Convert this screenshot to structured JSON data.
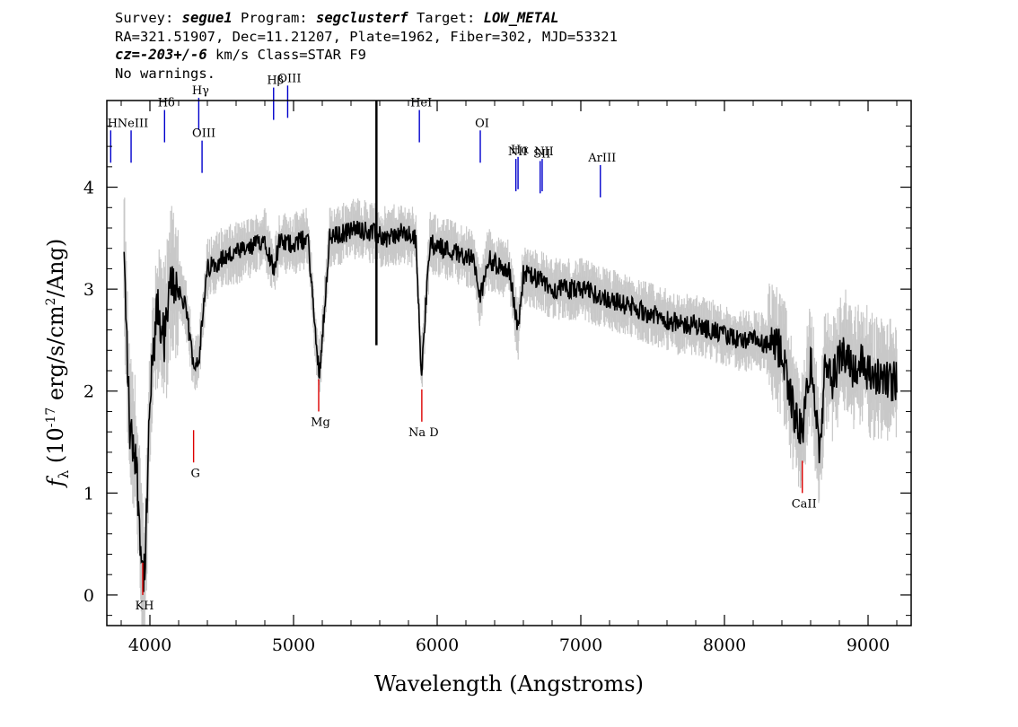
{
  "header": {
    "line1": {
      "survey_label": "Survey: ",
      "survey": "segue1",
      "program_label": " Program: ",
      "program": "segclusterf",
      "target_label": " Target: ",
      "target": "LOW_METAL"
    },
    "line2": "RA=321.51907, Dec=11.21207, Plate=1962, Fiber=302, MJD=53321",
    "line3": {
      "cz_label": "cz=",
      "cz": "-203+/-6",
      "rest": " km/s Class=STAR F9"
    },
    "line4": "No warnings."
  },
  "colors": {
    "flux": "#000000",
    "error_band": "#c8c8c8",
    "emission_marker": "#0000cc",
    "absorption_marker": "#dd0000"
  },
  "chart_data": {
    "type": "line",
    "xlabel": "Wavelength (Angstroms)",
    "ylabel": "f_λ (10^-17 erg/s/cm^2/Ang)",
    "xlim": [
      3700,
      9300
    ],
    "ylim": [
      -0.3,
      4.85
    ],
    "x_ticks": [
      4000,
      5000,
      6000,
      7000,
      8000,
      9000
    ],
    "y_ticks": [
      0,
      1,
      2,
      3,
      4
    ],
    "series": [
      {
        "role": "flux",
        "x": [
          3820,
          3860,
          3900,
          3933,
          3950,
          3968,
          4000,
          4050,
          4102,
          4150,
          4200,
          4250,
          4300,
          4340,
          4400,
          4500,
          4600,
          4700,
          4800,
          4861,
          4900,
          5000,
          5100,
          5167,
          5183,
          5250,
          5350,
          5450,
          5550,
          5650,
          5750,
          5850,
          5890,
          5950,
          6050,
          6150,
          6250,
          6300,
          6350,
          6450,
          6500,
          6563,
          6600,
          6700,
          6800,
          6900,
          7000,
          7100,
          7200,
          7300,
          7400,
          7500,
          7600,
          7700,
          7800,
          7900,
          8000,
          8100,
          8200,
          8300,
          8400,
          8498,
          8542,
          8600,
          8662,
          8700,
          8750,
          8800,
          8850,
          8900,
          8950,
          9000,
          9050,
          9100,
          9150,
          9200
        ],
        "y": [
          3.3,
          1.6,
          1.4,
          0.6,
          0.2,
          0.3,
          1.9,
          2.8,
          2.5,
          3.1,
          3.0,
          2.8,
          2.3,
          2.3,
          3.2,
          3.3,
          3.35,
          3.4,
          3.5,
          3.2,
          3.45,
          3.45,
          3.5,
          2.3,
          2.2,
          3.5,
          3.55,
          3.6,
          3.55,
          3.5,
          3.55,
          3.5,
          2.2,
          3.45,
          3.4,
          3.35,
          3.3,
          2.9,
          3.3,
          3.2,
          3.2,
          2.6,
          3.15,
          3.1,
          3.0,
          3.0,
          3.0,
          2.95,
          2.9,
          2.85,
          2.8,
          2.75,
          2.7,
          2.65,
          2.65,
          2.6,
          2.55,
          2.5,
          2.5,
          2.45,
          2.4,
          1.7,
          1.6,
          2.3,
          1.4,
          2.2,
          2.1,
          2.3,
          2.4,
          2.2,
          2.3,
          2.2,
          2.1,
          2.15,
          2.1,
          2.1
        ]
      }
    ],
    "emission_lines": [
      {
        "label": "H",
        "x": 3727,
        "level": 4.24
      },
      {
        "label": "NeIII",
        "x": 3869,
        "level": 4.24
      },
      {
        "label": "Hδ",
        "x": 4102,
        "level": 4.44
      },
      {
        "label": "Hγ",
        "x": 4340,
        "level": 4.56
      },
      {
        "label": "OIII",
        "x": 4363,
        "level": 4.14
      },
      {
        "label": "Hβ",
        "x": 4861,
        "level": 4.66
      },
      {
        "label": "OIII",
        "x": 4959,
        "level": 4.68
      },
      {
        "label": "HeI",
        "x": 5876,
        "level": 4.44
      },
      {
        "label": "OI",
        "x": 6300,
        "level": 4.24
      },
      {
        "label": "NII",
        "x": 6548,
        "level": 3.96
      },
      {
        "label": "Hα",
        "x": 6563,
        "level": 3.98
      },
      {
        "label": "SII",
        "x": 6717,
        "level": 3.94
      },
      {
        "label": "NII",
        "x": 6731,
        "level": 3.96
      },
      {
        "label": "ArIII",
        "x": 7136,
        "level": 3.9
      }
    ],
    "absorption_lines": [
      {
        "label": "KH",
        "x": 3950,
        "level": 0.0
      },
      {
        "label": "G",
        "x": 4304,
        "level": 1.3
      },
      {
        "label": "Mg",
        "x": 5175,
        "level": 1.8
      },
      {
        "label": "Na D",
        "x": 5893,
        "level": 1.7
      },
      {
        "label": "CaII",
        "x": 8542,
        "level": 1.0
      }
    ]
  }
}
